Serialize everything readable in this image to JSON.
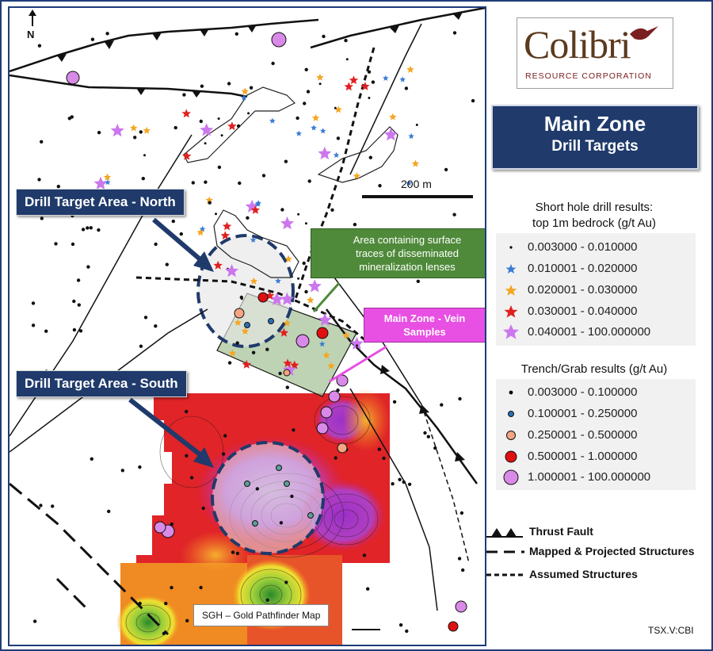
{
  "map": {
    "north_label": "N",
    "scale_label": "200 m",
    "callout_north": "Drill Target Area - North",
    "callout_south": "Drill Target Area - South",
    "green_box": [
      "Area containing surface",
      "traces of disseminated",
      "mineralization lenses"
    ],
    "pink_box": [
      "Main Zone - Vein",
      "Samples"
    ],
    "sgh_label": "SGH – Gold Pathfinder Map"
  },
  "logo": {
    "brand": "Colibri",
    "subtitle": "RESOURCE CORPORATION"
  },
  "title": {
    "line1": "Main Zone",
    "line2": "Drill Targets"
  },
  "legend_drill": {
    "title_line1": "Short hole drill results:",
    "title_line2": "top 1m bedrock (g/t Au)",
    "items": [
      {
        "label": "0.003000 - 0.010000",
        "symbol": "dot-small",
        "color": "#000000"
      },
      {
        "label": "0.010001 - 0.020000",
        "symbol": "star-small",
        "color": "#3a7bd5"
      },
      {
        "label": "0.020001 - 0.030000",
        "symbol": "star-small",
        "color": "#f5a623"
      },
      {
        "label": "0.030001 - 0.040000",
        "symbol": "star-medium",
        "color": "#e02020"
      },
      {
        "label": "0.040001 - 100.000000",
        "symbol": "star-large",
        "color": "#cc77ee"
      }
    ]
  },
  "legend_trench": {
    "title": "Trench/Grab results (g/t Au)",
    "items": [
      {
        "label": "0.003000 - 0.100000",
        "symbol": "circle-1",
        "color": "#000000"
      },
      {
        "label": "0.100001 - 0.250000",
        "symbol": "circle-2",
        "color": "#2a6fb5"
      },
      {
        "label": "0.250001 - 0.500000",
        "symbol": "circle-3",
        "color": "#f4a582"
      },
      {
        "label": "0.500001 - 1.000000",
        "symbol": "circle-4",
        "color": "#e01010"
      },
      {
        "label": "1.000001 - 100.000000",
        "symbol": "circle-5",
        "color": "#d98ae8"
      }
    ]
  },
  "structures": {
    "thrust": "Thrust Fault",
    "mapped": "Mapped & Projected Structures",
    "assumed": "Assumed Structures"
  },
  "ticker": "TSX.V:CBI"
}
